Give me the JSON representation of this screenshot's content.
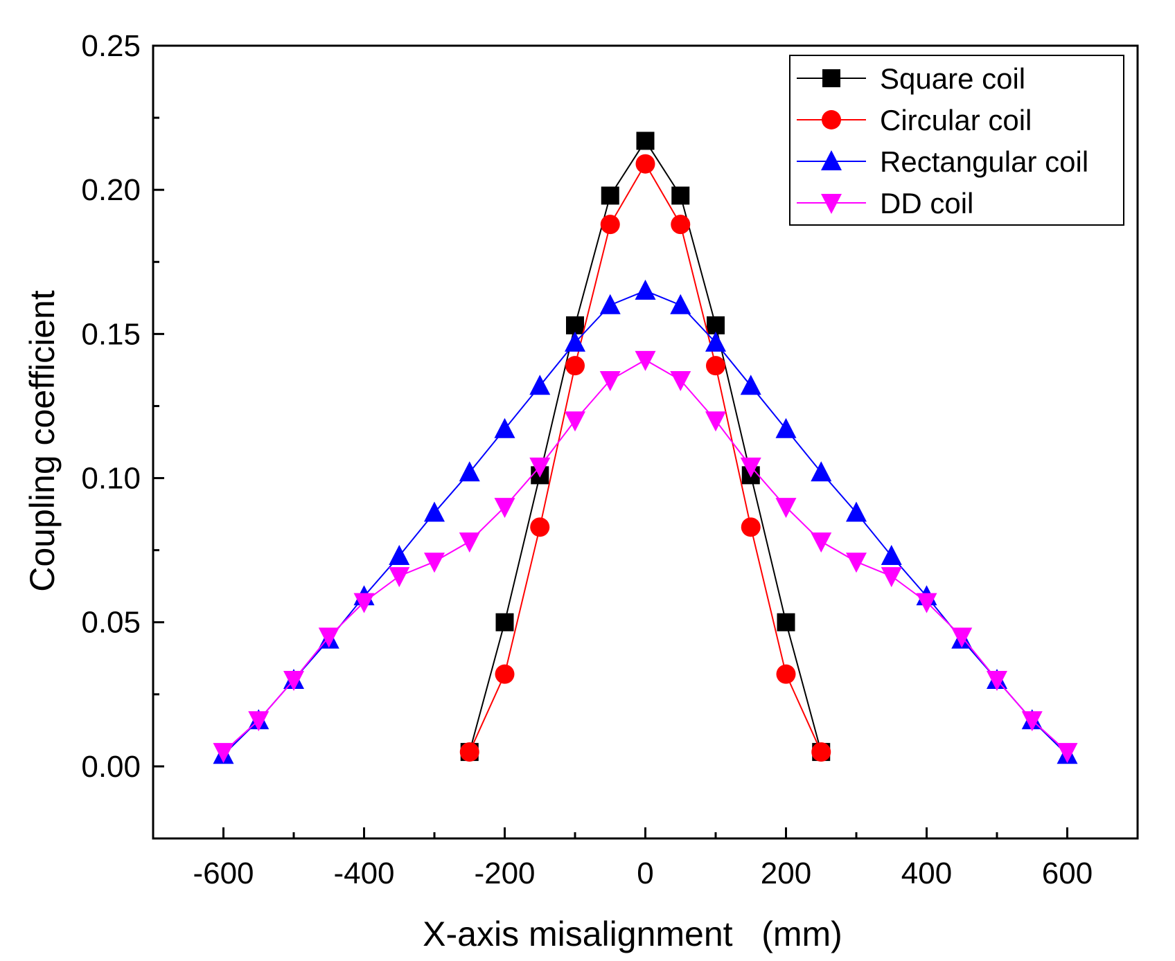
{
  "chart_data": {
    "type": "line",
    "title": "",
    "xlabel": "X-axis misalignment   (mm)",
    "ylabel": "Coupling coefficient",
    "xlim": [
      -700,
      700
    ],
    "ylim": [
      -0.025,
      0.25
    ],
    "x_ticks": [
      -600,
      -400,
      -200,
      0,
      200,
      400,
      600
    ],
    "y_ticks": [
      0.0,
      0.05,
      0.1,
      0.15,
      0.2,
      0.25
    ],
    "x_tick_labels": [
      "-600",
      "-400",
      "-200",
      "0",
      "200",
      "400",
      "600"
    ],
    "y_tick_labels": [
      "0.00",
      "0.05",
      "0.10",
      "0.15",
      "0.20",
      "0.25"
    ],
    "grid": false,
    "legend_position": "top-right",
    "series": [
      {
        "name": "Square coil",
        "color": "#000000",
        "marker": "square",
        "x": [
          -250,
          -200,
          -150,
          -100,
          -50,
          0,
          50,
          100,
          150,
          200,
          250
        ],
        "y": [
          0.005,
          0.05,
          0.101,
          0.153,
          0.198,
          0.217,
          0.198,
          0.153,
          0.101,
          0.05,
          0.005
        ]
      },
      {
        "name": "Circular coil",
        "color": "#ff0000",
        "marker": "circle",
        "x": [
          -250,
          -200,
          -150,
          -100,
          -50,
          0,
          50,
          100,
          150,
          200,
          250
        ],
        "y": [
          0.005,
          0.032,
          0.083,
          0.139,
          0.188,
          0.209,
          0.188,
          0.139,
          0.083,
          0.032,
          0.005
        ]
      },
      {
        "name": "Rectangular coil",
        "color": "#0000ff",
        "marker": "triangle-up",
        "x": [
          -600,
          -550,
          -500,
          -450,
          -400,
          -350,
          -300,
          -250,
          -200,
          -150,
          -100,
          -50,
          0,
          50,
          100,
          150,
          200,
          250,
          300,
          350,
          400,
          450,
          500,
          550,
          600
        ],
        "y": [
          0.004,
          0.016,
          0.03,
          0.044,
          0.059,
          0.073,
          0.088,
          0.102,
          0.117,
          0.132,
          0.147,
          0.16,
          0.165,
          0.16,
          0.147,
          0.132,
          0.117,
          0.102,
          0.088,
          0.073,
          0.059,
          0.044,
          0.03,
          0.016,
          0.004
        ]
      },
      {
        "name": "DD coil",
        "color": "#ff00ff",
        "marker": "triangle-down",
        "x": [
          -600,
          -550,
          -500,
          -450,
          -400,
          -350,
          -300,
          -250,
          -200,
          -150,
          -100,
          -50,
          0,
          50,
          100,
          150,
          200,
          250,
          300,
          350,
          400,
          450,
          500,
          550,
          600
        ],
        "y": [
          0.005,
          0.016,
          0.03,
          0.045,
          0.057,
          0.066,
          0.071,
          0.078,
          0.09,
          0.104,
          0.12,
          0.134,
          0.141,
          0.134,
          0.12,
          0.104,
          0.09,
          0.078,
          0.071,
          0.066,
          0.057,
          0.045,
          0.03,
          0.016,
          0.005
        ]
      }
    ]
  }
}
